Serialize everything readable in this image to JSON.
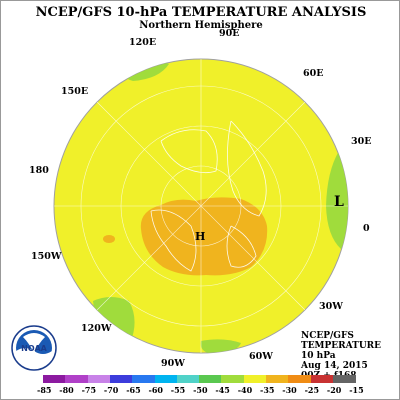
{
  "header": {
    "title": "NCEP/GFS 10-hPa TEMPERATURE ANALYSIS",
    "subtitle": "Northern Hemisphere"
  },
  "longitude_labels": {
    "lon_90e": "90E",
    "lon_120e": "120E",
    "lon_60e": "60E",
    "lon_150e": "150E",
    "lon_30e": "30E",
    "lon_180": "180",
    "lon_0": "0",
    "lon_150w": "150W",
    "lon_30w": "30W",
    "lon_120w": "120W",
    "lon_60w": "60W",
    "lon_90w": "90W"
  },
  "pressure_centers": {
    "low": "L",
    "high": "H"
  },
  "info": {
    "line1": "NCEP/GFS",
    "line2": "TEMPERATURE",
    "line3": "10 hPa",
    "line4": "Aug 14, 2015",
    "line5": "00Z + f168"
  },
  "logo": {
    "text": "NOAA",
    "icon": "noaa-logo-icon"
  },
  "legend": {
    "labels": [
      "-85",
      "-80",
      "-75",
      "-70",
      "-65",
      "-60",
      "-55",
      "-50",
      "-45",
      "-40",
      "-35",
      "-30",
      "-25",
      "-20",
      "-15"
    ],
    "colors": [
      "#8c1aa0",
      "#b040c8",
      "#c882e8",
      "#3c3cdc",
      "#2878f0",
      "#00b4f0",
      "#50d2c8",
      "#5ac850",
      "#a0dc3c",
      "#f0f02a",
      "#f0b41e",
      "#f08c14",
      "#c83232",
      "#646464"
    ]
  },
  "colors": {
    "ocean_fill": "#f0f02a",
    "warm_fill": "#f0b41e",
    "cool_fill": "#a0dc3c",
    "coastline": "#ffffff"
  }
}
